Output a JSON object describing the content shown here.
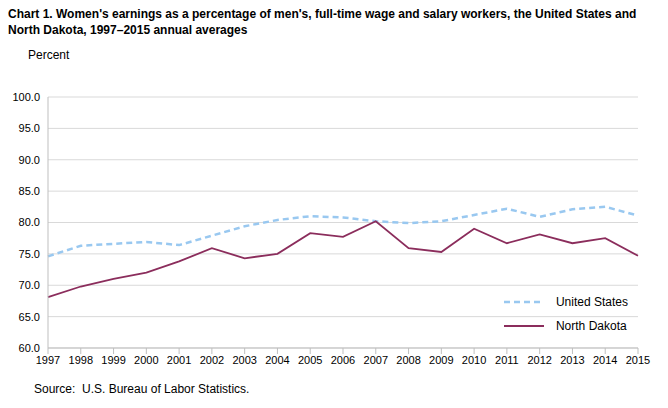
{
  "chart_data": {
    "type": "line",
    "title": "Chart 1. Women's earnings as a percentage of men's, full-time wage and salary workers, the United States and North Dakota, 1997–2015  annual averages",
    "y_label": "Percent",
    "source": "Source:  U.S. Bureau of Labor Statistics.",
    "categories": [
      "1997",
      "1998",
      "1999",
      "2000",
      "2001",
      "2002",
      "2003",
      "2004",
      "2005",
      "2006",
      "2007",
      "2008",
      "2009",
      "2010",
      "2011",
      "2012",
      "2013",
      "2014",
      "2015"
    ],
    "series": [
      {
        "name": "United States",
        "color": "#99c8f0",
        "line_style": "dashed",
        "values": [
          74.6,
          76.3,
          76.6,
          76.9,
          76.4,
          77.9,
          79.4,
          80.4,
          81.0,
          80.8,
          80.2,
          79.9,
          80.2,
          81.2,
          82.2,
          80.9,
          82.1,
          82.5,
          81.1
        ]
      },
      {
        "name": "North Dakota",
        "color": "#8b2d5c",
        "line_style": "solid",
        "values": [
          68.1,
          69.8,
          71.0,
          72.0,
          73.8,
          75.9,
          74.3,
          75.0,
          78.3,
          77.7,
          80.2,
          75.9,
          75.3,
          79.0,
          76.7,
          78.1,
          76.7,
          77.5,
          74.7
        ]
      }
    ],
    "ylim": [
      60,
      100
    ],
    "yticks": [
      {
        "value": 60,
        "label": "60.0"
      },
      {
        "value": 65,
        "label": "65.0"
      },
      {
        "value": 70,
        "label": "70.0"
      },
      {
        "value": 75,
        "label": "75.0"
      },
      {
        "value": 80,
        "label": "80.0"
      },
      {
        "value": 85,
        "label": "85.0"
      },
      {
        "value": 90,
        "label": "90.0"
      },
      {
        "value": 95,
        "label": "95.0"
      },
      {
        "value": 100,
        "label": "100.0"
      }
    ],
    "grid": true,
    "legend": "lower right"
  }
}
